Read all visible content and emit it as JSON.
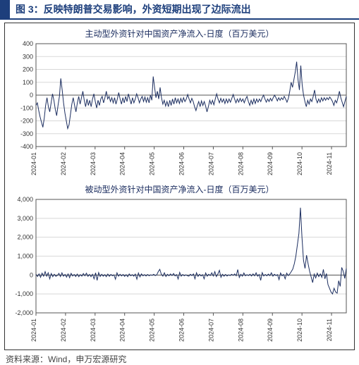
{
  "header": {
    "title": "图 3：反映特朗普交易影响，外资短期出现了边际流出"
  },
  "source": "资料来源：Wind，申万宏源研究",
  "colors": {
    "brand": "#1d3f7c",
    "line": "#1c2e60",
    "grid": "#d8d8d8",
    "axis": "#555",
    "bg": "#ffffff"
  },
  "x_labels": [
    "2024-01",
    "2024-02",
    "2024-03",
    "2024-04",
    "2024-05",
    "2024-06",
    "2024-07",
    "2024-08",
    "2024-09",
    "2024-10",
    "2024-11"
  ],
  "chart1": {
    "type": "line",
    "title": "主动型外资针对中国资产净流入-日度（百万美元）",
    "ylim": [
      -400,
      400
    ],
    "ytick_step": 100,
    "title_fontsize": 12,
    "line_width": 1,
    "values": [
      -80,
      -60,
      -120,
      -170,
      -210,
      -250,
      -180,
      -80,
      -20,
      -90,
      -130,
      -60,
      10,
      -40,
      -110,
      -160,
      -80,
      -10,
      130,
      40,
      -60,
      -140,
      -200,
      -260,
      -230,
      -150,
      -70,
      -20,
      -80,
      -130,
      -60,
      -10,
      -70,
      -20,
      30,
      -40,
      -90,
      -30,
      -80,
      -40,
      -90,
      -30,
      10,
      -50,
      -100,
      -40,
      -80,
      -30,
      -10,
      -60,
      -20,
      30,
      -30,
      -10,
      -50,
      -20,
      -60,
      -20,
      -70,
      -30,
      20,
      -30,
      -70,
      -20,
      -60,
      -10,
      -50,
      10,
      -30,
      -70,
      -20,
      -60,
      -30,
      10,
      -20,
      -60,
      -30,
      -10,
      -50,
      -15,
      -55,
      -20,
      -60,
      0,
      -40,
      145,
      60,
      -20,
      30,
      -30,
      60,
      -20,
      -70,
      -40,
      -85,
      -50,
      -90,
      -40,
      -80,
      -30,
      -70,
      -20,
      -60,
      -30,
      -65,
      -25,
      -55,
      -20,
      -50,
      -30,
      5,
      -30,
      -60,
      -25,
      -50,
      -90,
      -120,
      -80,
      -50,
      -90,
      -45,
      -80,
      -50,
      -85,
      -130,
      -90,
      -40,
      -70,
      -40,
      -75,
      -30,
      10,
      -30,
      -60,
      -25,
      -55,
      -30,
      -65,
      -30,
      -60,
      -30,
      -55,
      -25,
      5,
      -30,
      -60,
      -30,
      -55,
      -25,
      -50,
      -30,
      -60,
      -30,
      -10,
      -50,
      -80,
      -40,
      -70,
      -30,
      -65,
      -30,
      -55,
      -30,
      -50,
      -20,
      0,
      -30,
      -55,
      -30,
      -50,
      -25,
      -45,
      -20,
      0,
      -20,
      -45,
      -20,
      -40,
      -20,
      -35,
      -10,
      -30,
      -55,
      -25,
      30,
      100,
      60,
      120,
      180,
      260,
      120,
      40,
      230,
      80,
      0,
      -50,
      -90,
      -40,
      -70,
      -30,
      -50,
      -10,
      40,
      -30,
      -60,
      -30,
      -55,
      -20,
      -45,
      -20,
      -40,
      -20,
      -35,
      -15,
      -30,
      -50,
      -80,
      -40,
      -60,
      -20,
      30,
      -20,
      -55,
      -90,
      -50,
      -10
    ]
  },
  "chart2": {
    "type": "line",
    "title": "被动型外资针对中国资产净流入-日度（百万美元）",
    "ylim": [
      -2000,
      4000
    ],
    "ytick_step": 1000,
    "title_fontsize": 12,
    "line_width": 1,
    "values": [
      40,
      -80,
      60,
      -120,
      100,
      -60,
      180,
      -60,
      120,
      -200,
      80,
      -90,
      40,
      -70,
      -20,
      90,
      -80,
      120,
      -60,
      30,
      -110,
      60,
      -140,
      90,
      -50,
      30,
      -80,
      50,
      -90,
      20,
      -60,
      80,
      -40,
      100,
      -70,
      30,
      -90,
      40,
      -200,
      120,
      -280,
      130,
      -80,
      40,
      -60,
      20,
      -90,
      50,
      -70,
      30,
      -40,
      10,
      -220,
      120,
      -60,
      40,
      -50,
      30,
      -70,
      20,
      -90,
      60,
      -40,
      20,
      -60,
      50,
      -220,
      110,
      -100,
      60,
      -40,
      20,
      -50,
      30,
      -40,
      10,
      -20,
      40,
      -30,
      10,
      180,
      300,
      40,
      -60,
      120,
      -80,
      40,
      -40,
      60,
      -30,
      80,
      -50,
      20,
      -210,
      140,
      -60,
      30,
      -40,
      10,
      -30,
      -60,
      40,
      -30,
      60,
      -200,
      120,
      -70,
      40,
      -50,
      20,
      -200,
      110,
      -60,
      40,
      -30,
      120,
      -50,
      180,
      -80,
      60,
      250,
      -120,
      40,
      -60,
      30,
      -50,
      10,
      -30,
      40,
      -20,
      60,
      -40,
      290,
      -130,
      40,
      -60,
      110,
      -40,
      20,
      -30,
      40,
      -50,
      60,
      -40,
      120,
      -60,
      30,
      -280,
      130,
      -50,
      30,
      -40,
      50,
      -30,
      120,
      -60,
      40,
      -30,
      20,
      -240,
      110,
      -40,
      30,
      -200,
      100,
      -30,
      60,
      180,
      320,
      600,
      1000,
      1600,
      2200,
      3560,
      2000,
      780,
      350,
      1050,
      600,
      200,
      -100,
      -400,
      50,
      -150,
      100,
      -80,
      60,
      -120,
      300,
      -200,
      80,
      -500,
      -700,
      -900,
      -1000,
      -700,
      -900,
      -960,
      -300,
      -600,
      400,
      200,
      -180,
      350
    ]
  }
}
